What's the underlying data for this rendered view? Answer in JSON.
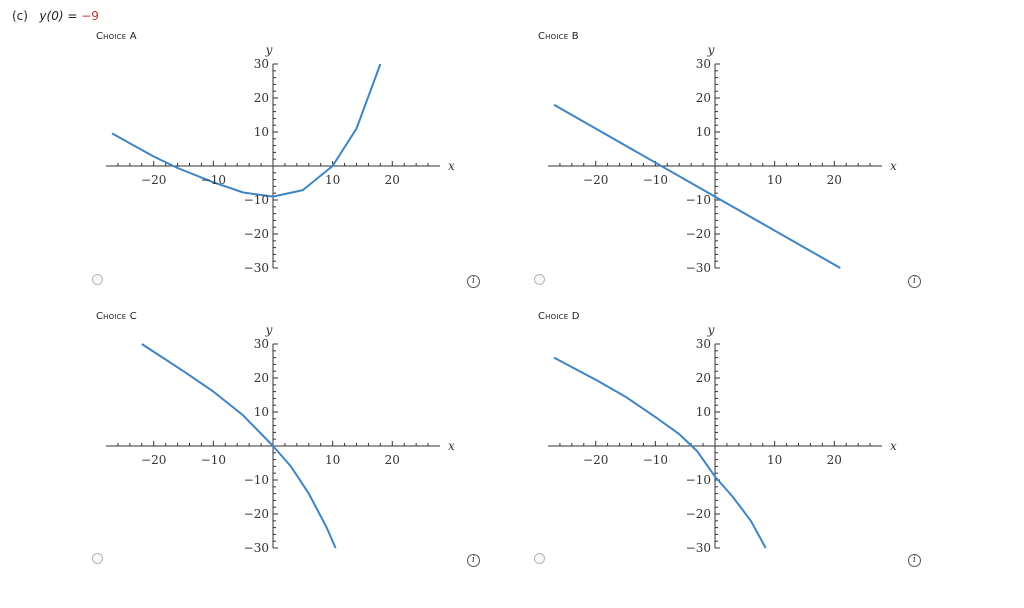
{
  "question": {
    "part": "(c)",
    "variable": "y(0)",
    "equals": "=",
    "value": "−9"
  },
  "choices": [
    {
      "label": "Choice A",
      "info": "i"
    },
    {
      "label": "Choice B",
      "info": "i"
    },
    {
      "label": "Choice C",
      "info": "i"
    },
    {
      "label": "Choice D",
      "info": "i"
    }
  ],
  "colors": {
    "curve": "#3f84c4",
    "axis": "#333333",
    "answer_value": "#c0392b"
  },
  "chart_data": [
    {
      "type": "line",
      "title": "Choice A",
      "xlabel": "x",
      "ylabel": "y",
      "xlim": [
        -28,
        28
      ],
      "ylim": [
        -30,
        30
      ],
      "xticks": [
        -20,
        -10,
        10,
        20
      ],
      "xtick_labels": [
        "−20",
        "−10",
        "10",
        "20"
      ],
      "yticks": [
        30,
        20,
        10,
        -10,
        -20,
        -30
      ],
      "ytick_labels": [
        "30",
        "20",
        "10",
        "−10",
        "−20",
        "−30"
      ],
      "series": [
        {
          "x": [
            -27,
            -20,
            -16,
            -10,
            -5,
            0,
            5,
            10,
            14,
            18
          ],
          "y": [
            9.6,
            2.8,
            -0.6,
            -4.8,
            -7.8,
            -9,
            -7.1,
            0,
            11,
            30
          ]
        }
      ]
    },
    {
      "type": "line",
      "title": "Choice B",
      "xlabel": "x",
      "ylabel": "y",
      "xlim": [
        -28,
        28
      ],
      "ylim": [
        -30,
        30
      ],
      "xticks": [
        -20,
        -10,
        10,
        20
      ],
      "xtick_labels": [
        "−20",
        "−10",
        "10",
        "20"
      ],
      "yticks": [
        30,
        20,
        10,
        -10,
        -20,
        -30
      ],
      "ytick_labels": [
        "30",
        "20",
        "10",
        "−10",
        "−20",
        "−30"
      ],
      "series": [
        {
          "x": [
            -27,
            0,
            21
          ],
          "y": [
            18,
            -9,
            -30
          ]
        }
      ]
    },
    {
      "type": "line",
      "title": "Choice C",
      "xlabel": "x",
      "ylabel": "y",
      "xlim": [
        -28,
        28
      ],
      "ylim": [
        -30,
        30
      ],
      "xticks": [
        -20,
        -10,
        10,
        20
      ],
      "xtick_labels": [
        "−20",
        "−10",
        "10",
        "20"
      ],
      "yticks": [
        30,
        20,
        10,
        -10,
        -20,
        -30
      ],
      "ytick_labels": [
        "30",
        "20",
        "10",
        "−10",
        "−20",
        "−30"
      ],
      "series": [
        {
          "x": [
            -22,
            -15,
            -10,
            -5,
            0,
            3,
            6,
            9,
            10.5
          ],
          "y": [
            30,
            22,
            16,
            9,
            0,
            -6,
            -14,
            -24,
            -30
          ]
        }
      ]
    },
    {
      "type": "line",
      "title": "Choice D",
      "xlabel": "x",
      "ylabel": "y",
      "xlim": [
        -28,
        28
      ],
      "ylim": [
        -30,
        30
      ],
      "xticks": [
        -20,
        -10,
        10,
        20
      ],
      "xtick_labels": [
        "−20",
        "−10",
        "10",
        "20"
      ],
      "yticks": [
        30,
        20,
        10,
        -10,
        -20,
        -30
      ],
      "ytick_labels": [
        "30",
        "20",
        "10",
        "−10",
        "−20",
        "−30"
      ],
      "series": [
        {
          "x": [
            -27,
            -20,
            -15,
            -10,
            -6,
            -3,
            0,
            3,
            6,
            8.5
          ],
          "y": [
            26,
            19.5,
            14.5,
            8.5,
            3.5,
            -1.5,
            -9,
            -15,
            -22,
            -30
          ]
        }
      ]
    }
  ]
}
